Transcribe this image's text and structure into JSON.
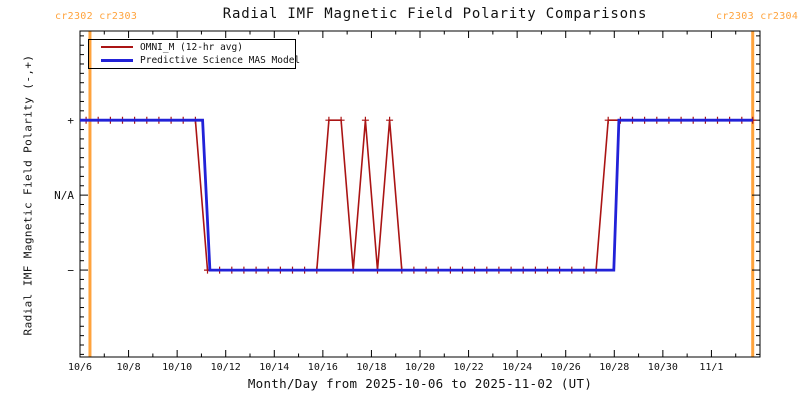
{
  "header": {
    "cr_left": "cr2302 cr2303",
    "cr_right": "cr2303 cr2304"
  },
  "colors": {
    "omni": "#aa1414",
    "mas": "#2222d8",
    "carrington": "#ffa33c",
    "axis": "#000000",
    "text": "#111111"
  },
  "legend": {
    "entries": [
      {
        "key": "omni",
        "label": "OMNI_M (12-hr avg)"
      },
      {
        "key": "mas",
        "label": "Predictive Science MAS Model"
      }
    ]
  },
  "chart_data": {
    "type": "line",
    "title": "Radial IMF Magnetic Field Polarity Comparisons",
    "xlabel": "Month/Day from 2025-10-06 to 2025-11-02 (UT)",
    "ylabel": "Radial IMF Magnetic Field Polarity (-,+)",
    "x_unit": "days since 2025-10-06 00:00 UT",
    "xlim": [
      0,
      28
    ],
    "ylim": [
      -2.16,
      2.19
    ],
    "grid": false,
    "legend_position": "top-left",
    "x_major_ticks": [
      {
        "day": 0,
        "label": "10/6"
      },
      {
        "day": 2,
        "label": "10/8"
      },
      {
        "day": 4,
        "label": "10/10"
      },
      {
        "day": 6,
        "label": "10/12"
      },
      {
        "day": 8,
        "label": "10/14"
      },
      {
        "day": 10,
        "label": "10/16"
      },
      {
        "day": 12,
        "label": "10/18"
      },
      {
        "day": 14,
        "label": "10/20"
      },
      {
        "day": 16,
        "label": "10/22"
      },
      {
        "day": 18,
        "label": "10/24"
      },
      {
        "day": 20,
        "label": "10/26"
      },
      {
        "day": 22,
        "label": "10/28"
      },
      {
        "day": 24,
        "label": "10/30"
      },
      {
        "day": 26,
        "label": "11/1"
      }
    ],
    "x_minor_days": [
      1,
      3,
      5,
      7,
      9,
      11,
      13,
      15,
      17,
      19,
      21,
      23,
      25,
      27
    ],
    "y_categories": [
      {
        "value": 1,
        "label": "+"
      },
      {
        "value": 0,
        "label": "N/A"
      },
      {
        "value": -1,
        "label": "−"
      }
    ],
    "y_minor_divisions": 8,
    "series": [
      {
        "name": "OMNI_M (12-hr avg)",
        "color_key": "omni",
        "marker": "plus",
        "marker_start_day": 0.25,
        "marker_step_days": 0.5,
        "points_day_value": [
          [
            0.125,
            1
          ],
          [
            4.75,
            1
          ],
          [
            5.25,
            -1
          ],
          [
            9.75,
            -1
          ],
          [
            10.25,
            1
          ],
          [
            10.75,
            1
          ],
          [
            11.25,
            -1
          ],
          [
            11.75,
            1
          ],
          [
            12.25,
            -1
          ],
          [
            12.75,
            1
          ],
          [
            13.25,
            -1
          ],
          [
            21.25,
            -1
          ],
          [
            21.75,
            1
          ],
          [
            27.7,
            1
          ]
        ]
      },
      {
        "name": "Predictive Science MAS Model",
        "color_key": "mas",
        "marker": "none",
        "points_day_value": [
          [
            0,
            1
          ],
          [
            5.05,
            1
          ],
          [
            5.35,
            -1
          ],
          [
            21.98,
            -1
          ],
          [
            22.19,
            1
          ],
          [
            27.7,
            1
          ]
        ]
      }
    ],
    "carrington_boundaries_day": [
      0.41,
      27.7
    ]
  }
}
